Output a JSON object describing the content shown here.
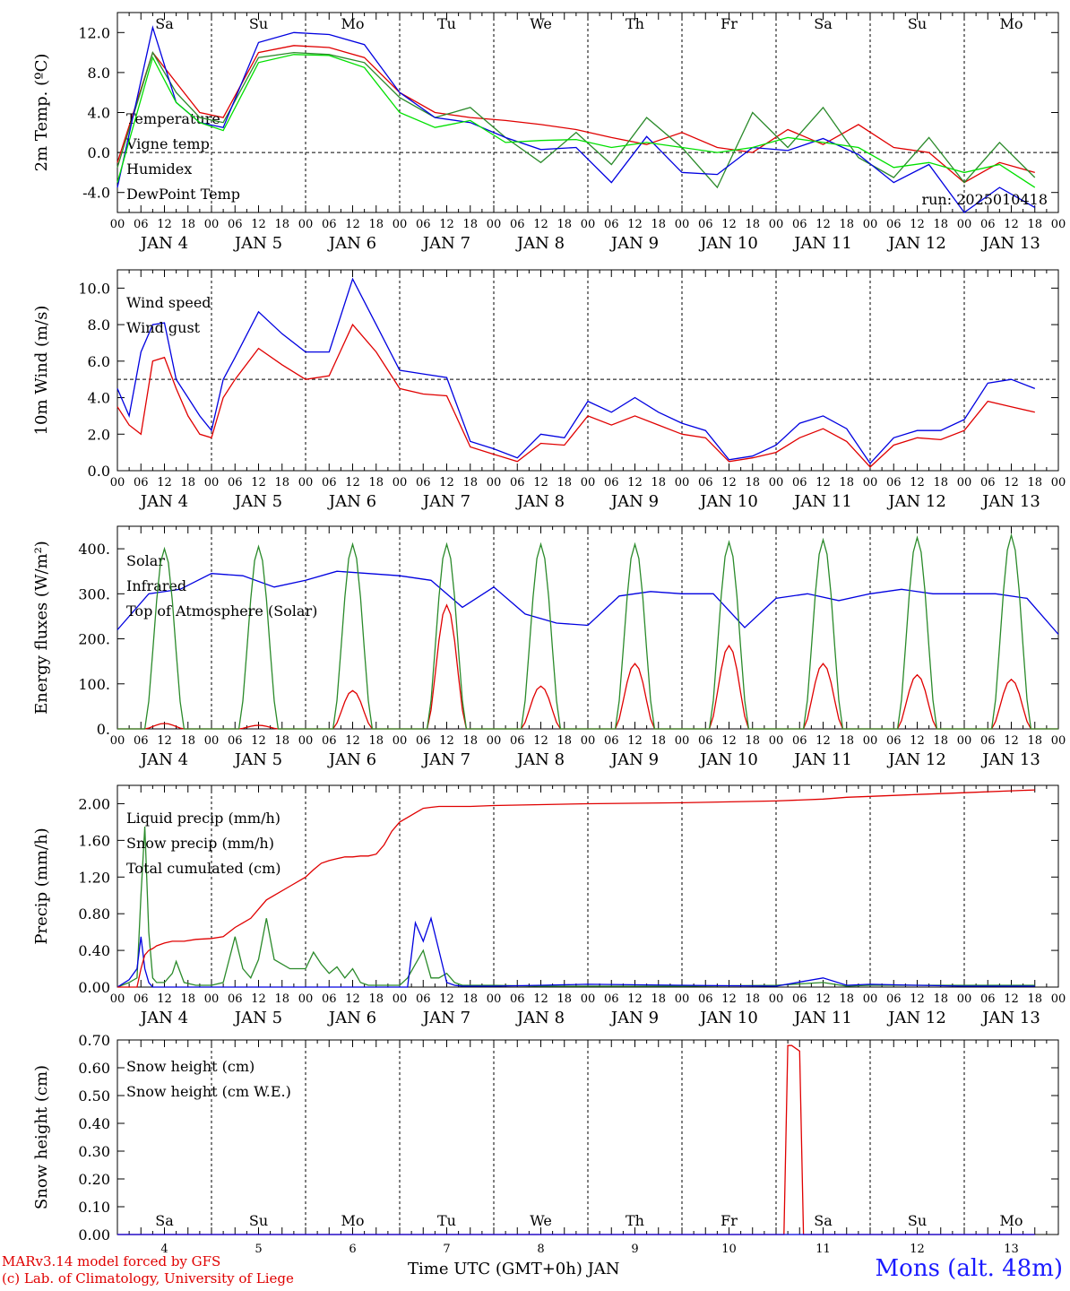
{
  "chart_data": [
    {
      "type": "line",
      "ylabel": "2m Temp. (ºC)",
      "ylim": [
        -6,
        14
      ],
      "yticks": [
        -4.0,
        0.0,
        4.0,
        8.0,
        12.0
      ],
      "ytick_labels": [
        "-4.0",
        "0.0",
        "4.0",
        "8.0",
        "12.0"
      ],
      "reference_line": 0,
      "annotation": "run: 2025010418",
      "weekday_labels": [
        "Sa",
        "Su",
        "Mo",
        "Tu",
        "We",
        "Th",
        "Fr",
        "Sa",
        "Su",
        "Mo"
      ],
      "weekday_colors": [
        "#e00000",
        "#e00000",
        "#000000",
        "#000000",
        "#000000",
        "#000000",
        "#000000",
        "#e00000",
        "#e00000",
        "#000000"
      ],
      "x": [
        0,
        9,
        15,
        21,
        27,
        36,
        45,
        54,
        63,
        72,
        81,
        90,
        99,
        108,
        117,
        126,
        135,
        144,
        153,
        162,
        171,
        180,
        189,
        198,
        207,
        216,
        225,
        234
      ],
      "series": [
        {
          "name": "Temperature",
          "color": "#e00000",
          "values": [
            -1,
            10,
            7,
            4,
            3.5,
            10,
            10.7,
            10.5,
            9.5,
            6,
            4,
            3.5,
            3.2,
            2.8,
            2.3,
            1.5,
            0.8,
            2,
            0.5,
            0,
            2.3,
            0.8,
            2.8,
            0.5,
            0,
            -3,
            -1,
            -2
          ]
        },
        {
          "name": "Vigne temp",
          "color": "#2a8a2a",
          "values": [
            -1.5,
            10,
            6,
            3.5,
            3,
            9.5,
            10,
            9.8,
            9,
            5.5,
            3.5,
            4.5,
            1.5,
            -1,
            2,
            -1.2,
            3.5,
            0.5,
            -3.5,
            4,
            0.5,
            4.5,
            -0.5,
            -2.5,
            1.5,
            -3,
            1,
            -2.5
          ]
        },
        {
          "name": "Humidex",
          "color": "#0000e0",
          "values": [
            -3.5,
            12.5,
            5,
            3,
            2.5,
            11,
            12,
            11.8,
            10.8,
            6,
            3.5,
            3,
            1.5,
            0.3,
            0.5,
            -3,
            1.6,
            -2,
            -2.2,
            0.5,
            0.2,
            1.4,
            -0.2,
            -3,
            -1.2,
            -6,
            -3.5,
            -5.5
          ]
        },
        {
          "name": "DewPoint Temp",
          "color": "#00e000",
          "values": [
            -3,
            9.5,
            5,
            3,
            2.2,
            9,
            9.8,
            9.7,
            8.5,
            4,
            2.5,
            3.2,
            1,
            1.2,
            1.3,
            0.5,
            1,
            0.5,
            0,
            0.5,
            1.5,
            1,
            0.5,
            -1.5,
            -1,
            -2,
            -1.2,
            -3.5
          ]
        }
      ],
      "legend_placement": "left"
    },
    {
      "type": "line",
      "ylabel": "10m Wind (m/s)",
      "ylim": [
        0,
        11
      ],
      "yticks": [
        0,
        2,
        4,
        6,
        8,
        10
      ],
      "ytick_labels": [
        "0.0",
        "2.0",
        "4.0",
        "6.0",
        "8.0",
        "10.0"
      ],
      "reference_line": 5,
      "x": [
        0,
        3,
        6,
        9,
        12,
        15,
        18,
        21,
        24,
        27,
        30,
        36,
        42,
        48,
        54,
        60,
        66,
        72,
        78,
        84,
        90,
        96,
        102,
        108,
        114,
        120,
        126,
        132,
        138,
        144,
        150,
        156,
        162,
        168,
        174,
        180,
        186,
        192,
        198,
        204,
        210,
        216,
        222,
        228,
        234
      ],
      "series": [
        {
          "name": "Wind speed",
          "color": "#e00000",
          "values": [
            3.5,
            2.5,
            2,
            6,
            6.2,
            4.5,
            3,
            2,
            1.8,
            4,
            5,
            6.7,
            5.8,
            5,
            5.2,
            8,
            6.5,
            4.5,
            4.2,
            4.1,
            1.3,
            0.9,
            0.5,
            1.5,
            1.4,
            3,
            2.5,
            3,
            2.5,
            2,
            1.8,
            0.5,
            0.7,
            1,
            1.8,
            2.3,
            1.6,
            0.2,
            1.4,
            1.8,
            1.7,
            2.2,
            3.8,
            3.5,
            3.2
          ]
        },
        {
          "name": "Wind gust",
          "color": "#0000e0",
          "values": [
            4.5,
            3,
            6.5,
            8,
            8.1,
            5,
            4,
            3,
            2.2,
            5,
            6.2,
            8.7,
            7.5,
            6.5,
            6.5,
            10.5,
            8,
            5.5,
            5.3,
            5.1,
            1.6,
            1.2,
            0.7,
            2,
            1.8,
            3.8,
            3.2,
            4,
            3.2,
            2.6,
            2.2,
            0.6,
            0.8,
            1.4,
            2.6,
            3,
            2.3,
            0.4,
            1.8,
            2.2,
            2.2,
            2.8,
            4.8,
            5,
            4.5
          ]
        }
      ],
      "legend_placement": "left"
    },
    {
      "type": "line",
      "ylabel": "Energy fluxes (W/m²)",
      "ylim": [
        0,
        450
      ],
      "yticks": [
        0,
        100,
        200,
        300,
        400
      ],
      "ytick_labels": [
        "0.",
        "100.",
        "200.",
        "300.",
        "400."
      ],
      "series": [
        {
          "name": "Solar",
          "color": "#e00000",
          "peaks": [
            12,
            8,
            85,
            275,
            95,
            145,
            185,
            145,
            120,
            110
          ]
        },
        {
          "name": "Infrared",
          "color": "#0000e0",
          "values": [
            220,
            300,
            310,
            345,
            340,
            315,
            330,
            350,
            345,
            340,
            330,
            270,
            315,
            255,
            235,
            230,
            295,
            305,
            300,
            300,
            225,
            290,
            300,
            285,
            300,
            310,
            300,
            300,
            300,
            290,
            210
          ]
        },
        {
          "name": "Top of Atmosphere (Solar)",
          "color": "#2a8a2a",
          "peaks": [
            400,
            405,
            410,
            410,
            410,
            410,
            415,
            420,
            425,
            430
          ]
        }
      ],
      "legend_placement": "left"
    },
    {
      "type": "line",
      "ylabel": "Precip (mm/h)",
      "ylim": [
        0,
        2.2
      ],
      "yticks": [
        0,
        0.4,
        0.8,
        1.2,
        1.6,
        2.0
      ],
      "ytick_labels": [
        "0.00",
        "0.40",
        "0.80",
        "1.20",
        "1.60",
        "2.00"
      ],
      "x": [
        0,
        3,
        5,
        6,
        7,
        8,
        9,
        10,
        12,
        14,
        15,
        17,
        20,
        24,
        27,
        30,
        32,
        34,
        36,
        38,
        40,
        44,
        48,
        50,
        52,
        54,
        56,
        58,
        60,
        62,
        64,
        66,
        68,
        70,
        72,
        74,
        76,
        78,
        80,
        82,
        84,
        86,
        88,
        90,
        96,
        108,
        120,
        144,
        168,
        180,
        186,
        192,
        204,
        216,
        234
      ],
      "series": [
        {
          "name": "Liquid precip (mm/h)",
          "color": "#2a8a2a",
          "values": [
            0,
            0.05,
            0.1,
            1.0,
            1.75,
            0.6,
            0.1,
            0.05,
            0.05,
            0.15,
            0.28,
            0.05,
            0.02,
            0.02,
            0.05,
            0.55,
            0.2,
            0.1,
            0.3,
            0.75,
            0.3,
            0.2,
            0.2,
            0.38,
            0.25,
            0.15,
            0.22,
            0.1,
            0.2,
            0.05,
            0.02,
            0.02,
            0.02,
            0.02,
            0.02,
            0.1,
            0.25,
            0.4,
            0.1,
            0.1,
            0.15,
            0.05,
            0.02,
            0.02,
            0.02,
            0.01,
            0.01,
            0.01,
            0.02,
            0.05,
            0.01,
            0.02,
            0.02,
            0.02,
            0.02
          ]
        },
        {
          "name": "Snow precip (mm/h)",
          "color": "#0000e0",
          "values": [
            0,
            0.08,
            0.2,
            0.55,
            0.2,
            0.05,
            0,
            0,
            0,
            0,
            0,
            0,
            0,
            0,
            0,
            0,
            0,
            0,
            0,
            0,
            0,
            0,
            0,
            0,
            0,
            0,
            0,
            0,
            0,
            0,
            0,
            0,
            0,
            0,
            0,
            0,
            0.7,
            0.5,
            0.75,
            0.4,
            0.05,
            0.02,
            0.01,
            0.01,
            0.01,
            0.02,
            0.03,
            0.02,
            0.01,
            0.1,
            0.02,
            0.03,
            0.02,
            0.01,
            0.01
          ]
        },
        {
          "name": "Total cumulated (cm)",
          "color": "#e00000",
          "values": [
            0,
            0,
            0,
            0.2,
            0.35,
            0.4,
            0.42,
            0.45,
            0.48,
            0.5,
            0.5,
            0.5,
            0.52,
            0.53,
            0.55,
            0.65,
            0.7,
            0.75,
            0.85,
            0.95,
            1.0,
            1.1,
            1.2,
            1.28,
            1.35,
            1.38,
            1.4,
            1.42,
            1.42,
            1.43,
            1.43,
            1.45,
            1.55,
            1.7,
            1.8,
            1.85,
            1.9,
            1.95,
            1.96,
            1.97,
            1.97,
            1.97,
            1.97,
            1.97,
            1.98,
            1.99,
            2.0,
            2.01,
            2.03,
            2.05,
            2.07,
            2.08,
            2.1,
            2.12,
            2.15
          ]
        }
      ],
      "legend_placement": "left"
    },
    {
      "type": "line",
      "ylabel": "Snow height (cm)",
      "xlabel": "Time UTC (GMT+0h) JAN",
      "ylim": [
        0,
        0.7
      ],
      "yticks": [
        0,
        0.1,
        0.2,
        0.3,
        0.4,
        0.5,
        0.6,
        0.7
      ],
      "ytick_labels": [
        "0.00",
        "0.10",
        "0.20",
        "0.30",
        "0.40",
        "0.50",
        "0.60",
        "0.70"
      ],
      "x": [
        0,
        170,
        171,
        172,
        174,
        175,
        234
      ],
      "series": [
        {
          "name": "Snow height (cm)",
          "color": "#e00000",
          "values": [
            0,
            0,
            0.68,
            0.68,
            0.66,
            0,
            0
          ]
        },
        {
          "name": "Snow height (cm W.E.)",
          "color": "#0000e0",
          "values": [
            0,
            0,
            0,
            0,
            0,
            0,
            0
          ]
        }
      ],
      "day_numbers": [
        "4",
        "5",
        "6",
        "7",
        "8",
        "9",
        "10",
        "11",
        "12",
        "13"
      ],
      "weekday_labels": [
        "Sa",
        "Su",
        "Mo",
        "Tu",
        "We",
        "Th",
        "Fr",
        "Sa",
        "Su",
        "Mo"
      ],
      "weekday_colors": [
        "#e00000",
        "#e00000",
        "#000000",
        "#000000",
        "#000000",
        "#000000",
        "#000000",
        "#e00000",
        "#e00000",
        "#000000"
      ],
      "legend_placement": "left"
    }
  ],
  "x_axis": {
    "hour_labels": [
      "00",
      "06",
      "12",
      "18"
    ],
    "final_hour_label": "00",
    "month": "JAN",
    "days": [
      "4",
      "5",
      "6",
      "7",
      "8",
      "9",
      "10",
      "11",
      "12",
      "13"
    ]
  },
  "footer": {
    "credit_line1": "MARv3.14 model forced by GFS",
    "credit_line2": "(c) Lab. of Climatology, University of Liege",
    "station": "Mons (alt. 48m)",
    "credit_color": "#e00000",
    "station_color": "#1a1aff"
  }
}
